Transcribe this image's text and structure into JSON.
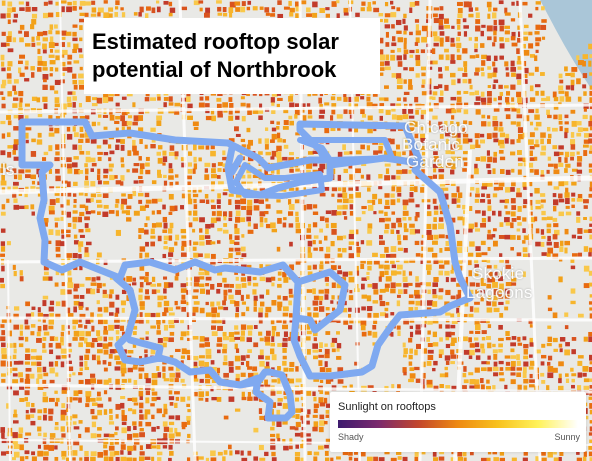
{
  "title": "Estimated rooftop solar potential of Northbrook",
  "map": {
    "labels": {
      "chicago": "Chicago",
      "botanic": "Botanic",
      "garden": "Garden",
      "ls": "ls",
      "skokie": "Skokie",
      "lagoons": "Lagoons"
    },
    "colors": {
      "land": "#e9e9e6",
      "water": "#aac6d8",
      "roads": "#ffffff",
      "boundary": "#7fa9f0",
      "rooftop_palette": [
        "#e86a10",
        "#ef8a12",
        "#f2a219",
        "#f7b52c",
        "#f9c84a",
        "#d9531e",
        "#c23a2a"
      ]
    }
  },
  "legend": {
    "title": "Sunlight on rooftops",
    "min_label": "Shady",
    "max_label": "Sunny",
    "gradient": [
      "#3d1b6e",
      "#7a2a6e",
      "#c2462d",
      "#ee8a12",
      "#f8c21e",
      "#fff25a",
      "#ffffff"
    ]
  }
}
